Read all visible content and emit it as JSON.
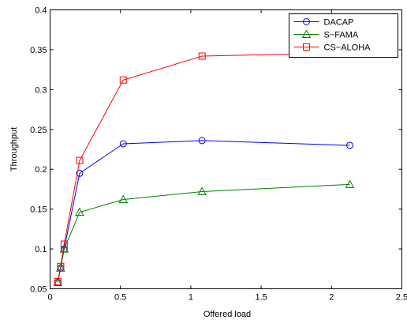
{
  "chart_data": {
    "type": "line",
    "title": "",
    "xlabel": "Offered load",
    "ylabel": "Throughput",
    "xlim": [
      0,
      2.5
    ],
    "ylim": [
      0.05,
      0.4
    ],
    "xticks": [
      "0",
      "0.5",
      "1",
      "1.5",
      "2",
      "2.5"
    ],
    "yticks": [
      "0.05",
      "0.1",
      "0.15",
      "0.2",
      "0.25",
      "0.3",
      "0.35",
      "0.4"
    ],
    "grid": false,
    "legend_position": "top-right",
    "series": [
      {
        "name": "DACAP",
        "color": "#0000ff",
        "marker": "circle",
        "x": [
          0.055,
          0.075,
          0.1,
          0.21,
          0.52,
          1.08,
          2.13
        ],
        "y": [
          0.058,
          0.076,
          0.1,
          0.195,
          0.232,
          0.236,
          0.23
        ]
      },
      {
        "name": "S−FAMA",
        "color": "#008000",
        "marker": "triangle",
        "x": [
          0.055,
          0.075,
          0.1,
          0.21,
          0.52,
          1.08,
          2.13
        ],
        "y": [
          0.058,
          0.076,
          0.1,
          0.146,
          0.162,
          0.172,
          0.181
        ]
      },
      {
        "name": "CS−ALOHA",
        "color": "#ff0000",
        "marker": "square",
        "x": [
          0.055,
          0.075,
          0.1,
          0.21,
          0.52,
          1.08,
          2.13
        ],
        "y": [
          0.059,
          0.078,
          0.106,
          0.211,
          0.312,
          0.342,
          0.346
        ]
      }
    ]
  }
}
